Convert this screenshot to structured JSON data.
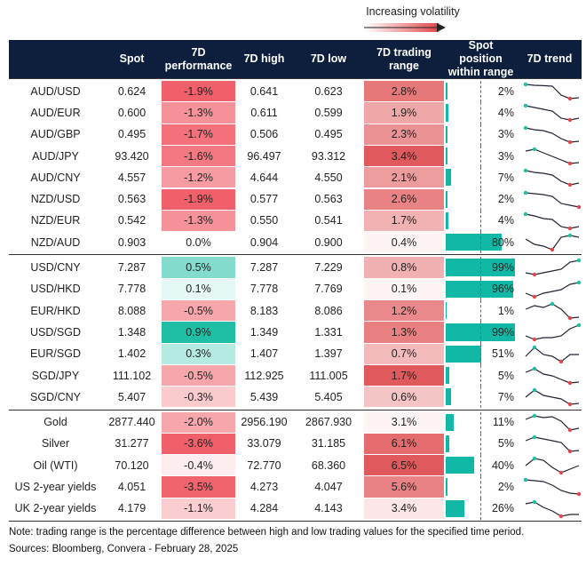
{
  "legend": {
    "label": "Increasing volatility"
  },
  "table": {
    "columns": [
      "",
      "Spot",
      "7D performance",
      "7D high",
      "7D low",
      "7D trading range",
      "Spot position within range",
      "7D trend"
    ],
    "groups": [
      {
        "rows": [
          {
            "label": "AUD/USD",
            "spot": "0.624",
            "performance": "-1.9%",
            "high": "0.641",
            "low": "0.623",
            "range": "2.8%",
            "position": "2%",
            "trend": [
              9,
              8.5,
              8.3,
              8,
              3,
              1,
              1.5
            ]
          },
          {
            "label": "AUD/EUR",
            "spot": "0.600",
            "performance": "-1.3%",
            "high": "0.611",
            "low": "0.599",
            "range": "1.9%",
            "position": "4%",
            "trend": [
              9,
              8,
              7,
              6,
              2,
              1,
              2
            ]
          },
          {
            "label": "AUD/GBP",
            "spot": "0.495",
            "performance": "-1.7%",
            "high": "0.506",
            "low": "0.495",
            "range": "2.3%",
            "position": "3%",
            "trend": [
              9,
              8,
              7.5,
              6,
              3,
              1,
              1.5
            ]
          },
          {
            "label": "AUD/JPY",
            "spot": "93.420",
            "performance": "-1.6%",
            "high": "96.497",
            "low": "93.312",
            "range": "3.4%",
            "position": "3%",
            "trend": [
              8,
              9,
              7,
              5,
              3,
              1,
              1.5
            ]
          },
          {
            "label": "AUD/CNY",
            "spot": "4.557",
            "performance": "-1.2%",
            "high": "4.644",
            "low": "4.550",
            "range": "2.1%",
            "position": "7%",
            "trend": [
              9,
              8,
              7.5,
              6.5,
              3,
              1,
              2
            ]
          },
          {
            "label": "NZD/USD",
            "spot": "0.563",
            "performance": "-1.9%",
            "high": "0.577",
            "low": "0.563",
            "range": "2.6%",
            "position": "2%",
            "trend": [
              9,
              8.5,
              8,
              7,
              3,
              2,
              1
            ]
          },
          {
            "label": "NZD/EUR",
            "spot": "0.542",
            "performance": "-1.3%",
            "high": "0.550",
            "low": "0.541",
            "range": "1.7%",
            "position": "4%",
            "trend": [
              9,
              8,
              6.5,
              6,
              2,
              1,
              2
            ]
          },
          {
            "label": "NZD/AUD",
            "spot": "0.903",
            "performance": "0.0%",
            "high": "0.904",
            "low": "0.900",
            "range": "0.4%",
            "position": "80%",
            "trend": [
              7,
              4,
              3,
              1,
              8,
              9,
              8
            ]
          }
        ]
      },
      {
        "rows": [
          {
            "label": "USD/CNY",
            "spot": "7.287",
            "performance": "0.5%",
            "high": "7.287",
            "low": "7.229",
            "range": "0.8%",
            "position": "99%",
            "trend": [
              2,
              1,
              2,
              3,
              4,
              8,
              9
            ]
          },
          {
            "label": "USD/HKD",
            "spot": "7.778",
            "performance": "0.1%",
            "high": "7.778",
            "low": "7.769",
            "range": "0.1%",
            "position": "96%",
            "trend": [
              3,
              1,
              3,
              4,
              5,
              8,
              9
            ]
          },
          {
            "label": "EUR/HKD",
            "spot": "8.088",
            "performance": "-0.5%",
            "high": "8.183",
            "low": "8.086",
            "range": "1.2%",
            "position": "1%",
            "trend": [
              6,
              8,
              7,
              9,
              6,
              1,
              1.5
            ]
          },
          {
            "label": "USD/SGD",
            "spot": "1.348",
            "performance": "0.9%",
            "high": "1.349",
            "low": "1.331",
            "range": "1.3%",
            "position": "99%",
            "trend": [
              3,
              1,
              2,
              2,
              3,
              7,
              9
            ]
          },
          {
            "label": "EUR/SGD",
            "spot": "1.402",
            "performance": "0.3%",
            "high": "1.407",
            "low": "1.397",
            "range": "0.7%",
            "position": "51%",
            "trend": [
              4,
              9,
              5,
              4,
              1,
              5,
              5
            ]
          },
          {
            "label": "SGD/JPY",
            "spot": "111.102",
            "performance": "-0.5%",
            "high": "112.925",
            "low": "111.005",
            "range": "1.7%",
            "position": "5%",
            "trend": [
              7,
              9,
              6,
              5,
              3,
              1,
              1.5
            ]
          },
          {
            "label": "SGD/CNY",
            "spot": "5.407",
            "performance": "-0.3%",
            "high": "5.439",
            "low": "5.405",
            "range": "0.6%",
            "position": "7%",
            "trend": [
              5,
              9,
              6,
              5,
              4,
              1,
              1.5
            ]
          }
        ]
      },
      {
        "rows": [
          {
            "label": "Gold",
            "spot": "2877.440",
            "performance": "-2.0%",
            "high": "2956.190",
            "low": "2867.930",
            "range": "3.1%",
            "position": "11%",
            "trend": [
              7,
              9,
              8,
              8.5,
              6,
              1,
              2
            ]
          },
          {
            "label": "Silver",
            "spot": "31.277",
            "performance": "-3.6%",
            "high": "33.079",
            "low": "31.185",
            "range": "6.1%",
            "position": "5%",
            "trend": [
              7,
              9,
              8,
              7,
              6,
              1,
              1.5
            ]
          },
          {
            "label": "Oil (WTI)",
            "spot": "70.120",
            "performance": "-0.4%",
            "high": "72.770",
            "low": "68.360",
            "range": "6.5%",
            "position": "40%",
            "trend": [
              5,
              9,
              8,
              4,
              1,
              3,
              5
            ]
          },
          {
            "label": "US 2-year yields",
            "spot": "4.051",
            "performance": "-3.5%",
            "high": "4.273",
            "low": "4.047",
            "range": "5.6%",
            "position": "2%",
            "trend": [
              9,
              8.5,
              8,
              6,
              3,
              1.5,
              1
            ]
          },
          {
            "label": "UK 2-year yields",
            "spot": "4.179",
            "performance": "-1.1%",
            "high": "4.284",
            "low": "4.143",
            "range": "3.4%",
            "position": "26%",
            "trend": [
              8,
              9,
              6,
              4,
              1,
              2,
              2
            ]
          }
        ]
      }
    ]
  },
  "footer": {
    "note": "Note: trading range is the percentage difference between high and low trading values for the specified time period.",
    "sources": "Sources: Bloomberg, Convera - February 28, 2025"
  }
}
